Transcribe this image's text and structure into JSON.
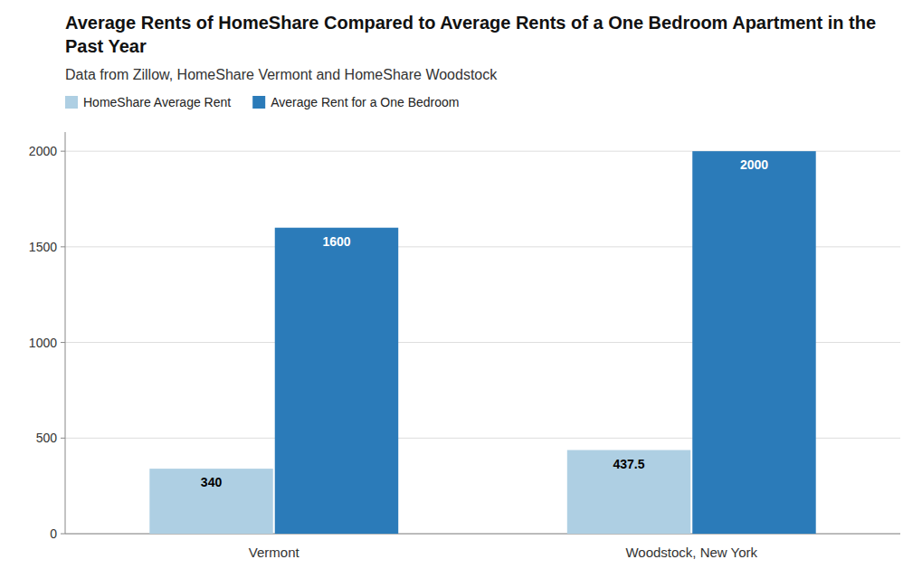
{
  "chart_data": {
    "type": "bar",
    "title": "Average Rents of HomeShare Compared to Average Rents of a One Bedroom Apartment in the Past Year",
    "subtitle": "Data from Zillow, HomeShare Vermont and HomeShare Woodstock",
    "categories": [
      "Vermont",
      "Woodstock, New York"
    ],
    "series": [
      {
        "name": "HomeShare Average Rent",
        "color": "#aecfe3",
        "values": [
          340,
          437.5
        ]
      },
      {
        "name": "Average Rent for a One Bedroom",
        "color": "#2b7bb9",
        "values": [
          1600,
          2000
        ]
      }
    ],
    "ylim": [
      0,
      2100
    ],
    "yticks": [
      0,
      500,
      1000,
      1500,
      2000
    ],
    "grid": true,
    "legend": "upper left",
    "data_labels": true
  }
}
